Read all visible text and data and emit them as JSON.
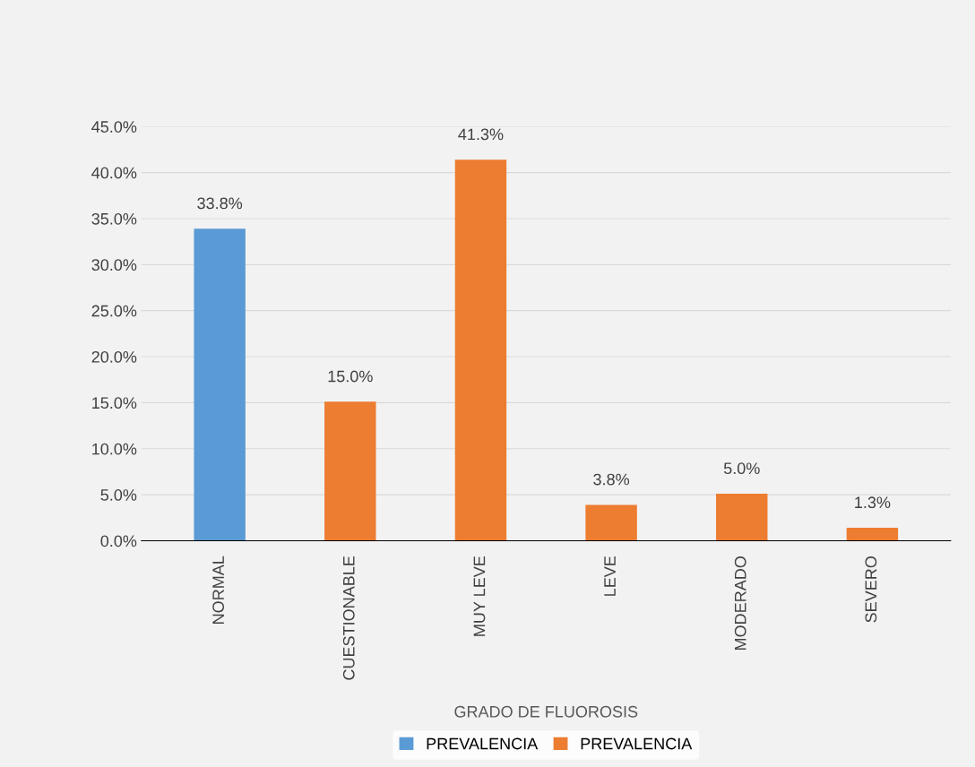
{
  "chart_data": {
    "type": "bar",
    "xlabel": "GRADO DE FLUOROSIS",
    "categories": [
      "NORMAL",
      "CUESTIONABLE",
      "MUY LEVE",
      "LEVE",
      "MODERADO",
      "SEVERO"
    ],
    "series": [
      {
        "name": "PREVALENCIA",
        "color": "#5b9bd5",
        "values": [
          33.8,
          null,
          null,
          null,
          null,
          null
        ],
        "value_labels": [
          "33.8%",
          null,
          null,
          null,
          null,
          null
        ]
      },
      {
        "name": "PREVALENCIA",
        "color": "#ed7d31",
        "values": [
          null,
          15.0,
          41.3,
          3.8,
          5.0,
          1.3
        ],
        "value_labels": [
          null,
          "15.0%",
          "41.3%",
          "3.8%",
          "5.0%",
          "1.3%"
        ]
      }
    ],
    "ylim": [
      0,
      45
    ],
    "yticks": [
      {
        "value": 0,
        "label": "0.0%"
      },
      {
        "value": 5,
        "label": "5.0%"
      },
      {
        "value": 10,
        "label": "10.0%"
      },
      {
        "value": 15,
        "label": "15.0%"
      },
      {
        "value": 20,
        "label": "20.0%"
      },
      {
        "value": 25,
        "label": "25.0%"
      },
      {
        "value": 30,
        "label": "30.0%"
      },
      {
        "value": 35,
        "label": "35.0%"
      },
      {
        "value": 40,
        "label": "40.0%"
      },
      {
        "value": 45,
        "label": "45.0%"
      }
    ],
    "grid": "y",
    "legend": "bottom"
  }
}
